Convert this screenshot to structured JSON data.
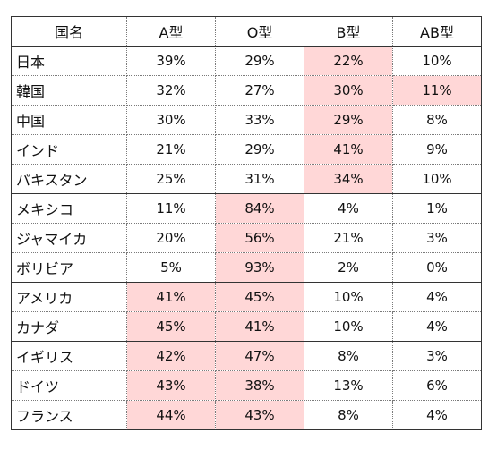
{
  "headers": [
    "国名",
    "A型",
    "O型",
    "B型",
    "AB型"
  ],
  "highlight_color": "#ffd7d7",
  "groups": [
    {
      "rows": [
        {
          "country": "日本",
          "values": [
            "39%",
            "29%",
            "22%",
            "10%"
          ],
          "highlight": [
            false,
            false,
            true,
            false
          ]
        },
        {
          "country": "韓国",
          "values": [
            "32%",
            "27%",
            "30%",
            "11%"
          ],
          "highlight": [
            false,
            false,
            true,
            true
          ]
        },
        {
          "country": "中国",
          "values": [
            "30%",
            "33%",
            "29%",
            "8%"
          ],
          "highlight": [
            false,
            false,
            true,
            false
          ]
        },
        {
          "country": "インド",
          "values": [
            "21%",
            "29%",
            "41%",
            "9%"
          ],
          "highlight": [
            false,
            false,
            true,
            false
          ]
        },
        {
          "country": "パキスタン",
          "values": [
            "25%",
            "31%",
            "34%",
            "10%"
          ],
          "highlight": [
            false,
            false,
            true,
            false
          ]
        }
      ]
    },
    {
      "rows": [
        {
          "country": "メキシコ",
          "values": [
            "11%",
            "84%",
            "4%",
            "1%"
          ],
          "highlight": [
            false,
            true,
            false,
            false
          ]
        },
        {
          "country": "ジャマイカ",
          "values": [
            "20%",
            "56%",
            "21%",
            "3%"
          ],
          "highlight": [
            false,
            true,
            false,
            false
          ]
        },
        {
          "country": "ボリビア",
          "values": [
            "5%",
            "93%",
            "2%",
            "0%"
          ],
          "highlight": [
            false,
            true,
            false,
            false
          ]
        }
      ]
    },
    {
      "rows": [
        {
          "country": "アメリカ",
          "values": [
            "41%",
            "45%",
            "10%",
            "4%"
          ],
          "highlight": [
            true,
            true,
            false,
            false
          ]
        },
        {
          "country": "カナダ",
          "values": [
            "45%",
            "41%",
            "10%",
            "4%"
          ],
          "highlight": [
            true,
            true,
            false,
            false
          ]
        }
      ]
    },
    {
      "rows": [
        {
          "country": "イギリス",
          "values": [
            "42%",
            "47%",
            "8%",
            "3%"
          ],
          "highlight": [
            true,
            true,
            false,
            false
          ]
        },
        {
          "country": "ドイツ",
          "values": [
            "43%",
            "38%",
            "13%",
            "6%"
          ],
          "highlight": [
            true,
            true,
            false,
            false
          ]
        },
        {
          "country": "フランス",
          "values": [
            "44%",
            "43%",
            "8%",
            "4%"
          ],
          "highlight": [
            true,
            true,
            false,
            false
          ]
        }
      ]
    }
  ]
}
